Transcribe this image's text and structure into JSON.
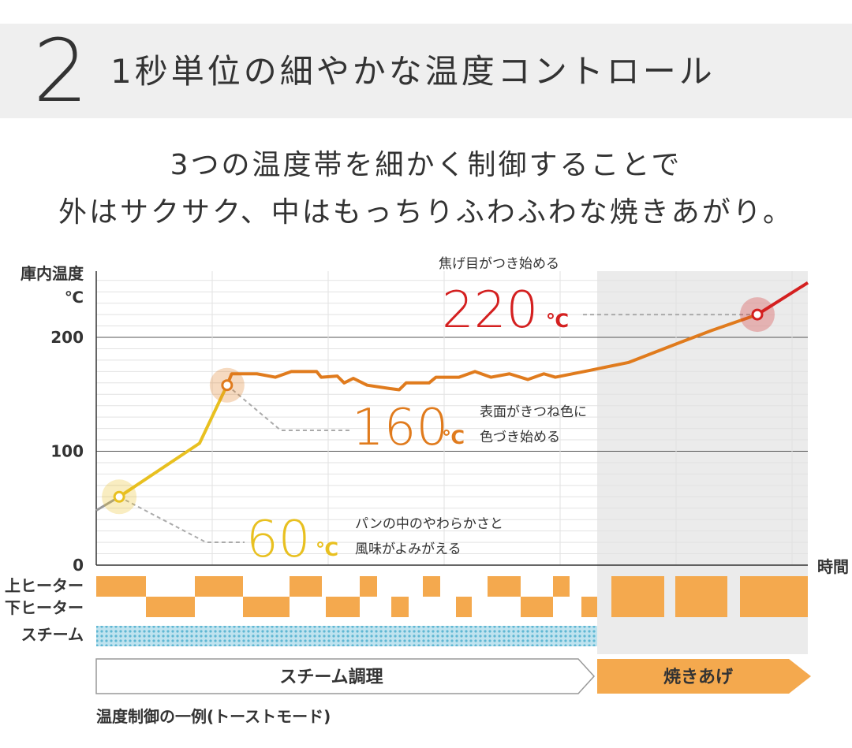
{
  "header": {
    "number": "2",
    "title": "1秒単位の細やかな温度コントロール"
  },
  "tagline": {
    "line1": "3つの温度帯を細かく制御することで",
    "line2": "外はサクサク、中はもっちりふわふわな焼きあがり。"
  },
  "chart_data": {
    "type": "line",
    "ylabel_line1": "庫内温度",
    "ylabel_line2": "℃",
    "xlabel": "時間",
    "ylim": [
      0,
      250
    ],
    "yticks": [
      0,
      100,
      200
    ],
    "grid": true,
    "series": [
      {
        "color": "#e8c020",
        "points": [
          [
            0,
            48
          ],
          [
            10,
            60
          ],
          [
            45,
            107
          ],
          [
            57,
            158
          ]
        ]
      },
      {
        "color": "#e07b1d",
        "points": [
          [
            57,
            158
          ],
          [
            59,
            168
          ],
          [
            70,
            168
          ],
          [
            78,
            165
          ],
          [
            85,
            170
          ],
          [
            96,
            170
          ],
          [
            98,
            165
          ],
          [
            105,
            166
          ],
          [
            108,
            160
          ],
          [
            112,
            164
          ],
          [
            118,
            158
          ],
          [
            128,
            155
          ],
          [
            132,
            154
          ],
          [
            135,
            160
          ],
          [
            145,
            160
          ],
          [
            148,
            165
          ],
          [
            158,
            165
          ],
          [
            165,
            170
          ],
          [
            172,
            165
          ],
          [
            180,
            168
          ],
          [
            188,
            163
          ],
          [
            195,
            168
          ],
          [
            200,
            165
          ],
          [
            215,
            171
          ],
          [
            232,
            178
          ],
          [
            255,
            196
          ],
          [
            268,
            206
          ],
          [
            288,
            220
          ]
        ]
      },
      {
        "color": "#d42020",
        "points": [
          [
            288,
            220
          ],
          [
            310,
            248
          ]
        ]
      }
    ],
    "markers": [
      {
        "value": 60,
        "color": "#e8c020"
      },
      {
        "value": 160,
        "color": "#e07b1d"
      },
      {
        "value": 220,
        "color": "#d42020"
      }
    ],
    "annotations": [
      {
        "value": "60",
        "unit": "℃",
        "color": "#e8c020",
        "note1": "パンの中のやわらかさと",
        "note2": "風味がよみがえる"
      },
      {
        "value": "160",
        "unit": "℃",
        "color": "#e07b1d",
        "note1": "表面がきつね色に",
        "note2": "色づき始める"
      },
      {
        "value": "220",
        "unit": "℃",
        "color": "#d42020",
        "note1": "焦げ目がつき始める",
        "note2": ""
      }
    ],
    "heater_rows": [
      "上ヒーター",
      "下ヒーター",
      "スチーム"
    ],
    "phases": [
      {
        "label": "スチーム調理",
        "color": "#ffffff"
      },
      {
        "label": "焼きあげ",
        "color": "#f4a94e"
      }
    ]
  },
  "caption": "温度制御の一例(トーストモード)"
}
